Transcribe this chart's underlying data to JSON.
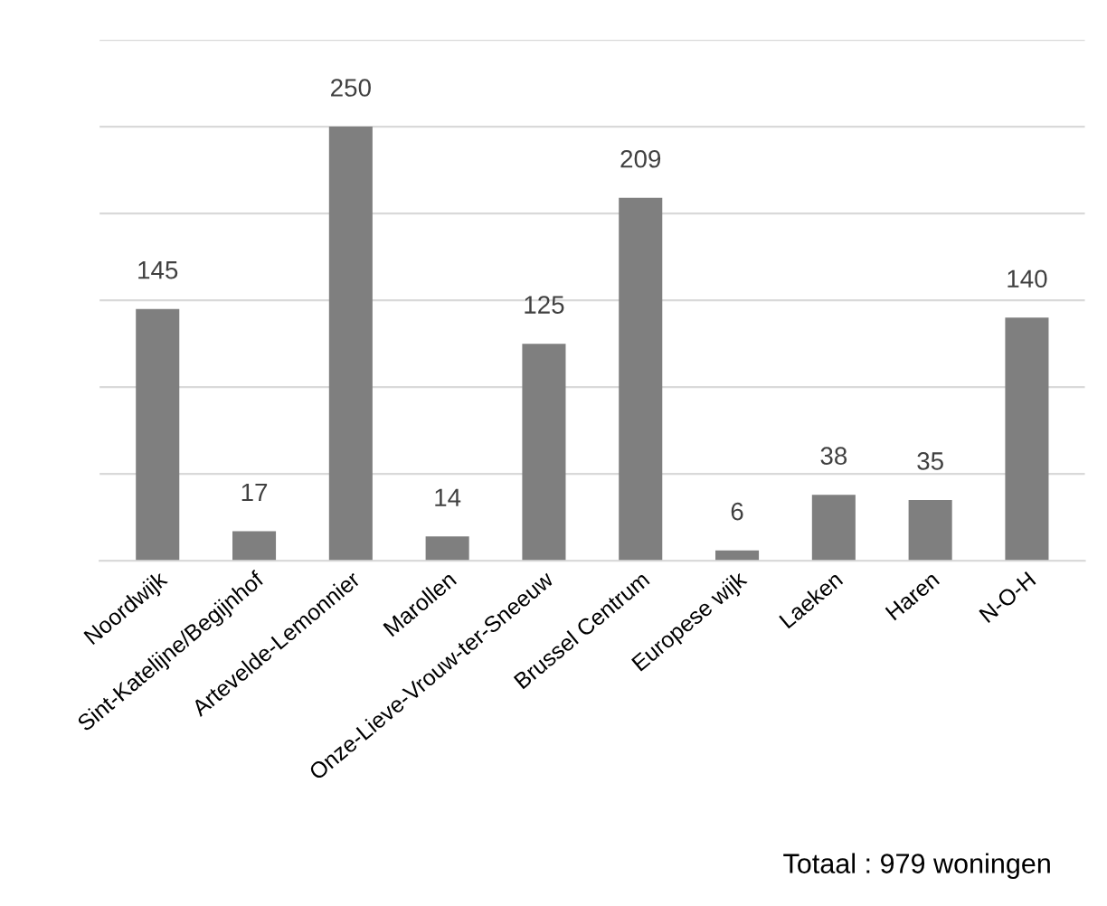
{
  "chart_data": {
    "type": "bar",
    "categories": [
      "Noordwijk",
      "Sint-Katelijne/Begijnhof",
      "Artevelde-Lemonnier",
      "Marollen",
      "Onze-Lieve-Vrouw-ter-Sneeuw",
      "Brussel Centrum",
      "Europese wijk",
      "Laeken",
      "Haren",
      "N-O-H"
    ],
    "values": [
      145,
      17,
      250,
      14,
      125,
      209,
      6,
      38,
      35,
      140
    ],
    "color": "#7f7f7f",
    "ylim": [
      0,
      300
    ],
    "yticks": [
      {
        "value": 0,
        "label": null
      },
      {
        "value": 50,
        "label": null
      },
      {
        "value": 100,
        "label": null
      },
      {
        "value": 150,
        "label": null
      },
      {
        "value": 200,
        "label": null
      },
      {
        "value": 250,
        "label": null
      },
      {
        "value": 300,
        "label": null
      }
    ],
    "tick_labels": "x",
    "grid": "y",
    "data_labels": true,
    "annotations": [
      "Totaal : 979 woningen"
    ]
  }
}
